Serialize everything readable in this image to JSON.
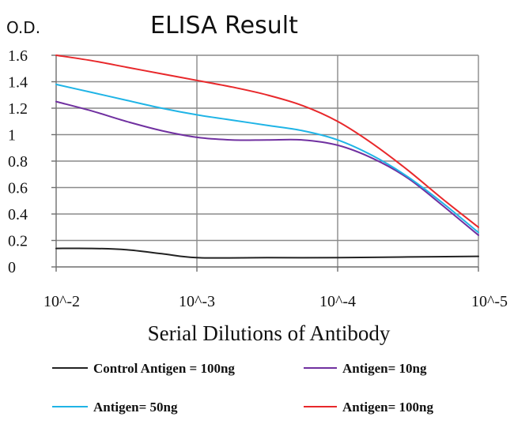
{
  "chart_data": {
    "type": "line",
    "title": "ELISA Result",
    "ylabel": "O.D.",
    "xlabel": "Serial Dilutions of Antibody",
    "x_categories": [
      "10^-2",
      "10^-3",
      "10^-4",
      "10^-5"
    ],
    "ylim": [
      0,
      1.6
    ],
    "y_ticks": [
      "0",
      "0.2",
      "0.4",
      "0.6",
      "0.8",
      "1",
      "1.2",
      "1.4",
      "1.6"
    ],
    "grid": true,
    "legend_position": "bottom",
    "series": [
      {
        "name": "Control Antigen = 100ng",
        "color": "#222222",
        "values": [
          0.14,
          0.13,
          0.07,
          0.08
        ],
        "curve": [
          [
            0,
            0.14
          ],
          [
            0.25,
            0.14
          ],
          [
            0.5,
            0.13
          ],
          [
            0.75,
            0.1
          ],
          [
            1,
            0.07
          ],
          [
            1.5,
            0.07
          ],
          [
            2,
            0.07
          ],
          [
            2.5,
            0.075
          ],
          [
            3,
            0.08
          ]
        ]
      },
      {
        "name": "Antigen= 10ng",
        "color": "#7030a0",
        "values": [
          1.25,
          0.98,
          0.92,
          0.24
        ],
        "curve": [
          [
            0,
            1.25
          ],
          [
            0.25,
            1.18
          ],
          [
            0.5,
            1.1
          ],
          [
            0.75,
            1.03
          ],
          [
            1,
            0.98
          ],
          [
            1.25,
            0.96
          ],
          [
            1.5,
            0.96
          ],
          [
            1.75,
            0.96
          ],
          [
            2,
            0.92
          ],
          [
            2.25,
            0.82
          ],
          [
            2.5,
            0.67
          ],
          [
            2.75,
            0.46
          ],
          [
            3,
            0.24
          ]
        ]
      },
      {
        "name": "Antigen= 50ng",
        "color": "#1fb4e6",
        "values": [
          1.38,
          1.15,
          0.96,
          0.26
        ],
        "curve": [
          [
            0,
            1.38
          ],
          [
            0.25,
            1.32
          ],
          [
            0.5,
            1.26
          ],
          [
            0.75,
            1.2
          ],
          [
            1,
            1.15
          ],
          [
            1.25,
            1.11
          ],
          [
            1.5,
            1.07
          ],
          [
            1.75,
            1.03
          ],
          [
            2,
            0.96
          ],
          [
            2.25,
            0.84
          ],
          [
            2.5,
            0.68
          ],
          [
            2.75,
            0.48
          ],
          [
            3,
            0.26
          ]
        ]
      },
      {
        "name": "Antigen= 100ng",
        "color": "#e8282b",
        "values": [
          1.6,
          1.41,
          1.1,
          0.3
        ],
        "curve": [
          [
            0,
            1.6
          ],
          [
            0.25,
            1.56
          ],
          [
            0.5,
            1.51
          ],
          [
            0.75,
            1.46
          ],
          [
            1,
            1.41
          ],
          [
            1.25,
            1.36
          ],
          [
            1.5,
            1.3
          ],
          [
            1.75,
            1.22
          ],
          [
            2,
            1.1
          ],
          [
            2.25,
            0.93
          ],
          [
            2.5,
            0.73
          ],
          [
            2.75,
            0.51
          ],
          [
            3,
            0.3
          ]
        ]
      }
    ]
  }
}
